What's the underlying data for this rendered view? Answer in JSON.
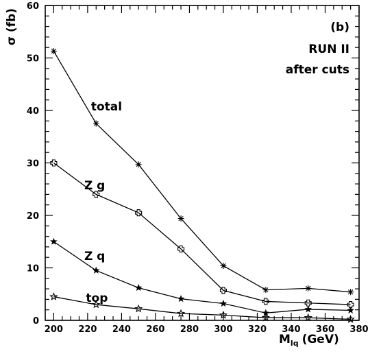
{
  "chart_data": {
    "type": "line",
    "title": "",
    "xlabel": "M",
    "xlabel_sub": "lq",
    "xlabel_unit": "(GeV)",
    "ylabel": "σ (fb)",
    "xlim": [
      195,
      380
    ],
    "ylim": [
      0,
      60
    ],
    "xticks": [
      200,
      220,
      240,
      260,
      280,
      300,
      320,
      340,
      360,
      380
    ],
    "yticks": [
      0,
      10,
      20,
      30,
      40,
      50,
      60
    ],
    "grid": false,
    "annotations": [
      "(b)",
      "RUN II",
      "after cuts"
    ],
    "x": [
      200,
      225,
      250,
      275,
      300,
      325,
      350,
      375
    ],
    "series": [
      {
        "name": "total",
        "marker": "asterisk",
        "values": [
          51.3,
          37.5,
          29.7,
          19.4,
          10.4,
          5.8,
          6.1,
          5.4
        ]
      },
      {
        "name": "Z g",
        "marker": "cross-square",
        "values": [
          30.0,
          24.0,
          20.5,
          13.6,
          5.7,
          3.6,
          3.3,
          3.0
        ]
      },
      {
        "name": "Z q",
        "marker": "star",
        "values": [
          15.0,
          9.5,
          6.2,
          4.1,
          3.2,
          1.4,
          2.1,
          1.9
        ]
      },
      {
        "name": "top",
        "marker": "star-open",
        "values": [
          4.5,
          3.0,
          2.2,
          1.3,
          1.0,
          0.5,
          0.5,
          0.2
        ]
      }
    ],
    "series_label_positions": [
      {
        "name": "total",
        "x": 222,
        "y": 40
      },
      {
        "name": "Z g",
        "x": 218,
        "y": 25
      },
      {
        "name": "Z q",
        "x": 218,
        "y": 11.5
      },
      {
        "name": "top",
        "x": 219,
        "y": 3.5
      }
    ]
  }
}
